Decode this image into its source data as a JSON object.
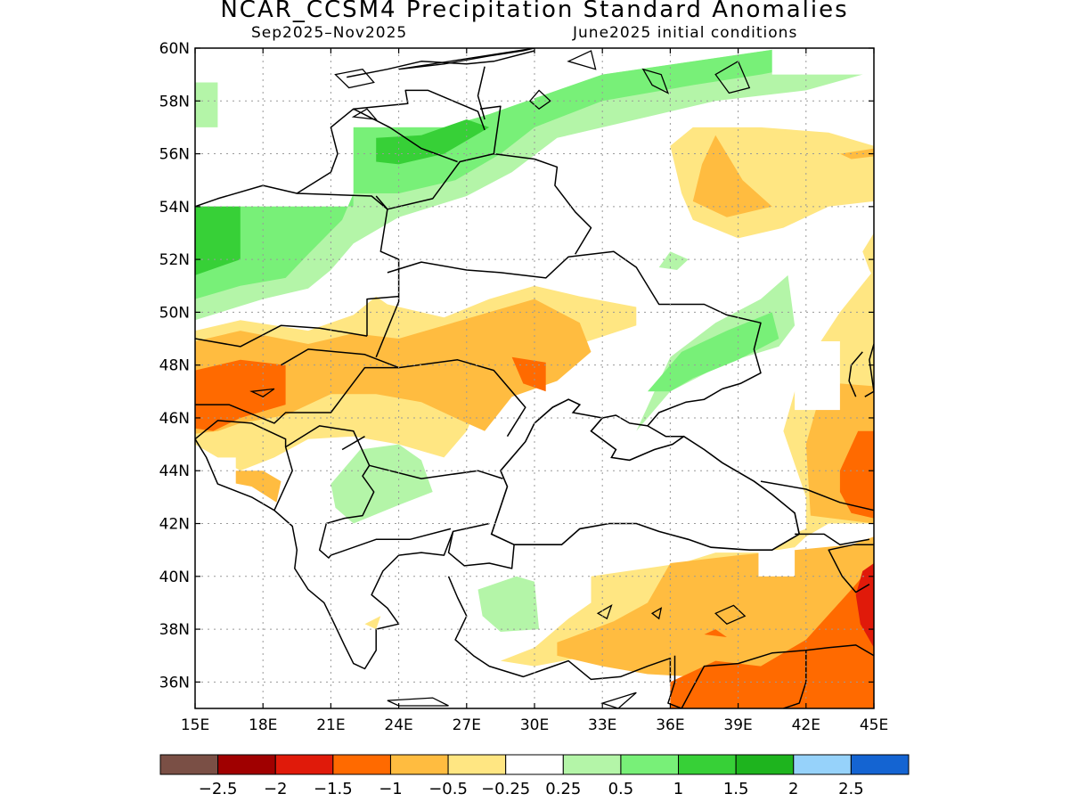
{
  "title": "NCAR_CCSM4 Precipitation Standard Anomalies",
  "period": "Sep2025–Nov2025",
  "initial_conditions": "June2025 initial conditions",
  "map": {
    "lon_range": [
      15,
      45
    ],
    "lat_range": [
      35,
      60
    ],
    "lat_ticks": [
      {
        "value": 60,
        "label": "60N"
      },
      {
        "value": 58,
        "label": "58N"
      },
      {
        "value": 56,
        "label": "56N"
      },
      {
        "value": 54,
        "label": "54N"
      },
      {
        "value": 52,
        "label": "52N"
      },
      {
        "value": 50,
        "label": "50N"
      },
      {
        "value": 48,
        "label": "48N"
      },
      {
        "value": 46,
        "label": "46N"
      },
      {
        "value": 44,
        "label": "44N"
      },
      {
        "value": 42,
        "label": "42N"
      },
      {
        "value": 40,
        "label": "40N"
      },
      {
        "value": 38,
        "label": "38N"
      },
      {
        "value": 36,
        "label": "36N"
      }
    ],
    "lon_ticks": [
      {
        "value": 15,
        "label": "15E"
      },
      {
        "value": 18,
        "label": "18E"
      },
      {
        "value": 21,
        "label": "21E"
      },
      {
        "value": 24,
        "label": "24E"
      },
      {
        "value": 27,
        "label": "27E"
      },
      {
        "value": 30,
        "label": "30E"
      },
      {
        "value": 33,
        "label": "33E"
      },
      {
        "value": 36,
        "label": "36E"
      },
      {
        "value": 39,
        "label": "39E"
      },
      {
        "value": 42,
        "label": "42E"
      },
      {
        "value": 45,
        "label": "45E"
      }
    ],
    "grid": true
  },
  "legend": {
    "colors": [
      "#7a4f45",
      "#a00000",
      "#e01a0a",
      "#ff6a00",
      "#ffbc40",
      "#ffe682",
      "#ffffff",
      "#b4f5a8",
      "#78f078",
      "#37d037",
      "#1eb41e",
      "#96d2fa",
      "#1464d2"
    ],
    "labels": [
      "−2.5",
      "−2",
      "−1.5",
      "−1",
      "−0.5",
      "−0.25",
      "0.25",
      "0.5",
      "1",
      "1.5",
      "2",
      "2.5"
    ]
  },
  "anomaly_regions": [
    {
      "level": 0.5,
      "color": "#b4f5a8",
      "ring": [
        [
          15,
          54
        ],
        [
          17,
          54
        ],
        [
          22,
          54
        ],
        [
          22,
          57
        ],
        [
          28,
          57
        ],
        [
          31,
          57.5
        ],
        [
          33,
          59
        ],
        [
          41,
          60
        ],
        [
          45,
          60
        ],
        [
          44.5,
          59
        ],
        [
          42,
          58.4
        ],
        [
          38,
          58
        ],
        [
          34,
          57.2
        ],
        [
          31,
          56.6
        ],
        [
          29,
          55.3
        ],
        [
          27,
          54.4
        ],
        [
          24,
          53.6
        ],
        [
          22,
          52.6
        ],
        [
          21,
          51.6
        ],
        [
          20,
          50.9
        ],
        [
          18,
          50.5
        ],
        [
          15,
          49.7
        ]
      ]
    },
    {
      "level": 1,
      "color": "#78f078",
      "ring": [
        [
          15,
          54
        ],
        [
          17,
          54
        ],
        [
          22,
          54
        ],
        [
          22,
          57
        ],
        [
          26,
          57
        ],
        [
          28,
          57.5
        ],
        [
          33,
          59
        ],
        [
          41,
          60
        ],
        [
          44,
          60
        ],
        [
          42.5,
          59.4
        ],
        [
          40,
          59
        ],
        [
          37,
          58.6
        ],
        [
          33,
          58
        ],
        [
          30,
          57
        ],
        [
          28.5,
          56
        ],
        [
          26.5,
          55
        ],
        [
          24,
          54.5
        ],
        [
          22,
          54.5
        ],
        [
          21.5,
          53.5
        ],
        [
          20,
          52.2
        ],
        [
          19,
          51.3
        ],
        [
          17,
          51
        ],
        [
          15,
          50.5
        ]
      ]
    },
    {
      "level": 1.5,
      "color": "#37d037",
      "ring": [
        [
          15,
          54
        ],
        [
          17,
          54
        ],
        [
          17,
          52
        ],
        [
          15,
          51.4
        ]
      ]
    },
    {
      "level": 1.5,
      "color": "#37d037",
      "ring": [
        [
          23,
          56.6
        ],
        [
          25,
          56.7
        ],
        [
          27,
          57.3
        ],
        [
          28,
          57
        ],
        [
          26,
          56
        ],
        [
          24,
          55.6
        ],
        [
          23,
          55.7
        ]
      ]
    },
    {
      "level": 0.5,
      "color": "#b4f5a8",
      "ring": [
        [
          15,
          58.7
        ],
        [
          16,
          58.7
        ],
        [
          16,
          57
        ],
        [
          15,
          57
        ]
      ]
    },
    {
      "level": 0.5,
      "color": "#b4f5a8",
      "ring": [
        [
          34.5,
          45.5
        ],
        [
          36,
          48.3
        ],
        [
          38,
          49.6
        ],
        [
          40,
          50.5
        ],
        [
          41.2,
          51.4
        ],
        [
          41.5,
          49.5
        ],
        [
          40.8,
          48.7
        ],
        [
          38.5,
          48.1
        ],
        [
          36,
          47
        ]
      ]
    },
    {
      "level": 1,
      "color": "#78f078",
      "ring": [
        [
          35,
          47
        ],
        [
          36.5,
          48.5
        ],
        [
          38.5,
          49.3
        ],
        [
          40.5,
          50
        ],
        [
          40.8,
          49
        ],
        [
          39,
          48.2
        ],
        [
          37,
          47.5
        ],
        [
          36,
          47
        ]
      ]
    },
    {
      "level": 0.5,
      "color": "#b4f5a8",
      "ring": [
        [
          21,
          43.5
        ],
        [
          22.3,
          44.8
        ],
        [
          24,
          45
        ],
        [
          25,
          44.4
        ],
        [
          25.5,
          43.2
        ],
        [
          24,
          42.7
        ],
        [
          22,
          42
        ],
        [
          21.2,
          42.6
        ]
      ]
    },
    {
      "level": 0.5,
      "color": "#b4f5a8",
      "ring": [
        [
          27.5,
          39.5
        ],
        [
          29.2,
          40
        ],
        [
          30,
          39.8
        ],
        [
          30.2,
          38
        ],
        [
          28.5,
          37.9
        ],
        [
          27.7,
          38.5
        ]
      ]
    },
    {
      "level": 0.5,
      "color": "#b4f5a8",
      "ring": [
        [
          35.5,
          51.7
        ],
        [
          36,
          52.3
        ],
        [
          36.8,
          52.0
        ],
        [
          36.3,
          51.6
        ]
      ]
    },
    {
      "level": -0.25,
      "color": "#ffe682",
      "ring": [
        [
          15,
          49.3
        ],
        [
          17,
          49.7
        ],
        [
          20,
          49.3
        ],
        [
          22,
          49.9
        ],
        [
          23,
          50.6
        ],
        [
          23.5,
          50.3
        ],
        [
          26,
          49.8
        ],
        [
          28,
          50.5
        ],
        [
          30,
          51
        ],
        [
          32,
          50.6
        ],
        [
          34.5,
          50.2
        ],
        [
          34.5,
          49.5
        ],
        [
          32,
          48.8
        ],
        [
          30.5,
          48
        ],
        [
          29,
          47.2
        ],
        [
          27.5,
          46.5
        ],
        [
          27,
          45.5
        ],
        [
          26,
          44.5
        ],
        [
          24,
          45
        ],
        [
          22,
          45.3
        ],
        [
          20,
          45.2
        ],
        [
          18.5,
          44.5
        ],
        [
          17,
          44
        ],
        [
          16,
          44.5
        ],
        [
          15,
          45
        ]
      ]
    },
    {
      "level": -0.5,
      "color": "#ffbc40",
      "ring": [
        [
          15,
          48.9
        ],
        [
          17,
          49.3
        ],
        [
          20,
          48.8
        ],
        [
          22,
          49.2
        ],
        [
          24,
          49
        ],
        [
          26,
          49.5
        ],
        [
          28,
          50
        ],
        [
          30,
          50.5
        ],
        [
          32,
          49.6
        ],
        [
          32.5,
          48.5
        ],
        [
          31,
          47.4
        ],
        [
          29,
          46.8
        ],
        [
          27.8,
          45.5
        ],
        [
          26.5,
          46
        ],
        [
          25,
          46.6
        ],
        [
          23,
          46.9
        ],
        [
          21,
          46.9
        ],
        [
          19,
          46.1
        ],
        [
          17,
          45.8
        ],
        [
          16,
          45.5
        ],
        [
          15,
          45.4
        ]
      ]
    },
    {
      "level": -1,
      "color": "#ff6a00",
      "ring": [
        [
          15,
          47.8
        ],
        [
          17,
          48.2
        ],
        [
          19,
          48
        ],
        [
          19,
          46.5
        ],
        [
          17,
          46
        ],
        [
          15.8,
          45.5
        ],
        [
          15,
          45.6
        ]
      ]
    },
    {
      "level": -1,
      "color": "#ff6a00",
      "ring": [
        [
          29,
          48.3
        ],
        [
          30.5,
          48.1
        ],
        [
          30.5,
          47
        ],
        [
          29.5,
          47.3
        ]
      ]
    },
    {
      "level": -0.5,
      "color": "#ffbc40",
      "ring": [
        [
          16,
          44
        ],
        [
          18,
          44
        ],
        [
          18.8,
          43.6
        ],
        [
          18.6,
          42.8
        ],
        [
          17.5,
          43.4
        ],
        [
          16.3,
          43.6
        ]
      ]
    },
    {
      "level": -0.25,
      "color": "#ffe682",
      "ring": [
        [
          36,
          56.3
        ],
        [
          36.5,
          54.5
        ],
        [
          37,
          53.5
        ],
        [
          39,
          52.8
        ],
        [
          41,
          53.2
        ],
        [
          43,
          54
        ],
        [
          45,
          54.2
        ],
        [
          45,
          56.3
        ],
        [
          43,
          56.8
        ],
        [
          40,
          57
        ],
        [
          37,
          57
        ]
      ]
    },
    {
      "level": -0.5,
      "color": "#ffbc40",
      "ring": [
        [
          37,
          54.2
        ],
        [
          37.4,
          55.6
        ],
        [
          38,
          56.7
        ],
        [
          39.2,
          55
        ],
        [
          40.5,
          54
        ],
        [
          38.5,
          53.6
        ]
      ]
    },
    {
      "level": -0.5,
      "color": "#ffbc40",
      "ring": [
        [
          45,
          55.9
        ],
        [
          44,
          55.8
        ],
        [
          43.5,
          56
        ],
        [
          45,
          56.2
        ]
      ]
    },
    {
      "level": -0.25,
      "color": "#ffe682",
      "ring": [
        [
          32.5,
          40
        ],
        [
          36.5,
          40.5
        ],
        [
          38,
          40.9
        ],
        [
          40,
          40.9
        ],
        [
          41.5,
          41.1
        ],
        [
          42,
          41.5
        ],
        [
          43,
          42
        ],
        [
          45,
          42
        ],
        [
          45,
          46.7
        ],
        [
          45,
          51.6
        ],
        [
          43.5,
          50
        ],
        [
          42.5,
          48.7
        ],
        [
          41.5,
          47
        ],
        [
          41,
          45.5
        ],
        [
          42,
          43
        ],
        [
          42,
          41.8
        ],
        [
          40.5,
          41.3
        ],
        [
          40,
          40
        ],
        [
          39.5,
          39.5
        ],
        [
          37.5,
          39.5
        ],
        [
          36,
          39
        ],
        [
          34,
          37.9
        ],
        [
          32.5,
          37
        ],
        [
          30,
          36.6
        ],
        [
          28.5,
          36.8
        ],
        [
          30,
          37.3
        ],
        [
          31.5,
          38.4
        ],
        [
          32.5,
          39
        ]
      ]
    },
    {
      "level": -0.5,
      "color": "#ffbc40",
      "ring": [
        [
          31,
          37.5
        ],
        [
          33.5,
          38.3
        ],
        [
          35,
          39
        ],
        [
          36,
          40.5
        ],
        [
          39,
          40.8
        ],
        [
          41.5,
          41
        ],
        [
          44,
          41.2
        ],
        [
          45,
          41.5
        ],
        [
          45,
          37.3
        ],
        [
          43,
          36.5
        ],
        [
          40,
          36.5
        ],
        [
          37,
          36.2
        ],
        [
          35,
          36.3
        ],
        [
          33,
          36.6
        ],
        [
          31,
          37
        ]
      ]
    },
    {
      "level": -0.5,
      "color": "#ffbc40",
      "ring": [
        [
          42,
          45
        ],
        [
          42.5,
          46.5
        ],
        [
          43.5,
          47.3
        ],
        [
          45,
          47.2
        ],
        [
          45,
          42
        ],
        [
          42.2,
          42.3
        ]
      ]
    },
    {
      "level": -0.25,
      "color": "#ffe682",
      "ring": [
        [
          44.5,
          52.3
        ],
        [
          45,
          53
        ],
        [
          45,
          51.3
        ],
        [
          44.8,
          51.6
        ]
      ]
    },
    {
      "level": -1,
      "color": "#ff6a00",
      "ring": [
        [
          43.5,
          44
        ],
        [
          44.3,
          45.5
        ],
        [
          45,
          45.5
        ],
        [
          45,
          42.2
        ],
        [
          44,
          42.4
        ],
        [
          43.5,
          43.2
        ]
      ]
    },
    {
      "level": -1,
      "color": "#ff6a00",
      "ring": [
        [
          36,
          35
        ],
        [
          36,
          36
        ],
        [
          38,
          36.8
        ],
        [
          40,
          36.6
        ],
        [
          42,
          37.6
        ],
        [
          44,
          39.5
        ],
        [
          45,
          40.5
        ],
        [
          45,
          35
        ]
      ]
    },
    {
      "level": -1.5,
      "color": "#e01a0a",
      "ring": [
        [
          44.5,
          40.2
        ],
        [
          45,
          40.5
        ],
        [
          45,
          37.3
        ],
        [
          44.4,
          38.2
        ],
        [
          44.2,
          39.3
        ]
      ]
    },
    {
      "level": -1,
      "color": "#ff6a00",
      "ring": [
        [
          37.5,
          37.8
        ],
        [
          38,
          38
        ],
        [
          38.5,
          37.7
        ]
      ]
    },
    {
      "level": -0.25,
      "color": "#ffe682",
      "ring": [
        [
          22.5,
          38.2
        ],
        [
          23.2,
          38.5
        ],
        [
          23,
          38
        ]
      ]
    }
  ],
  "masked_cells": [
    {
      "lon": [
        29,
        30
      ],
      "lat": [
        58,
        60
      ]
    },
    {
      "lon": [
        40.5,
        45
      ],
      "lat": [
        59,
        60
      ]
    },
    {
      "lon": [
        44.5,
        45
      ],
      "lat": [
        58,
        59
      ]
    },
    {
      "lon": [
        39.9,
        41.5
      ],
      "lat": [
        40,
        41
      ]
    },
    {
      "lon": [
        41.5,
        43.5
      ],
      "lat": [
        46.3,
        48.9
      ]
    },
    {
      "lon": [
        32.5,
        34.5
      ],
      "lat": [
        46,
        47
      ]
    },
    {
      "lon": [
        15,
        16.8
      ],
      "lat": [
        43,
        44.5
      ]
    }
  ],
  "black_sea_outline": [
    [
      28.1,
      41.6
    ],
    [
      28.8,
      43.4
    ],
    [
      28.5,
      44
    ],
    [
      29.6,
      45.1
    ],
    [
      30,
      45.8
    ],
    [
      30.8,
      46.4
    ],
    [
      31.5,
      46.7
    ],
    [
      32,
      46.5
    ],
    [
      31.7,
      46.2
    ],
    [
      33,
      46
    ],
    [
      32.5,
      45.5
    ],
    [
      33.6,
      44.8
    ],
    [
      33.4,
      44.5
    ],
    [
      34.2,
      44.4
    ],
    [
      35.3,
      44.8
    ],
    [
      36.1,
      45.0
    ],
    [
      36.6,
      45.3
    ],
    [
      37.5,
      44.8
    ],
    [
      38.3,
      44.3
    ],
    [
      39.7,
      43.6
    ],
    [
      40.5,
      43.1
    ],
    [
      41.5,
      42.4
    ],
    [
      41.7,
      41.6
    ],
    [
      40.5,
      41.0
    ],
    [
      39.5,
      41.0
    ],
    [
      37.8,
      41.1
    ],
    [
      36.8,
      41.4
    ],
    [
      35.5,
      41.7
    ],
    [
      34.5,
      42.0
    ],
    [
      33.3,
      42.0
    ],
    [
      32,
      41.8
    ],
    [
      31.2,
      41.2
    ],
    [
      30,
      41.2
    ],
    [
      29.1,
      41.2
    ]
  ]
}
